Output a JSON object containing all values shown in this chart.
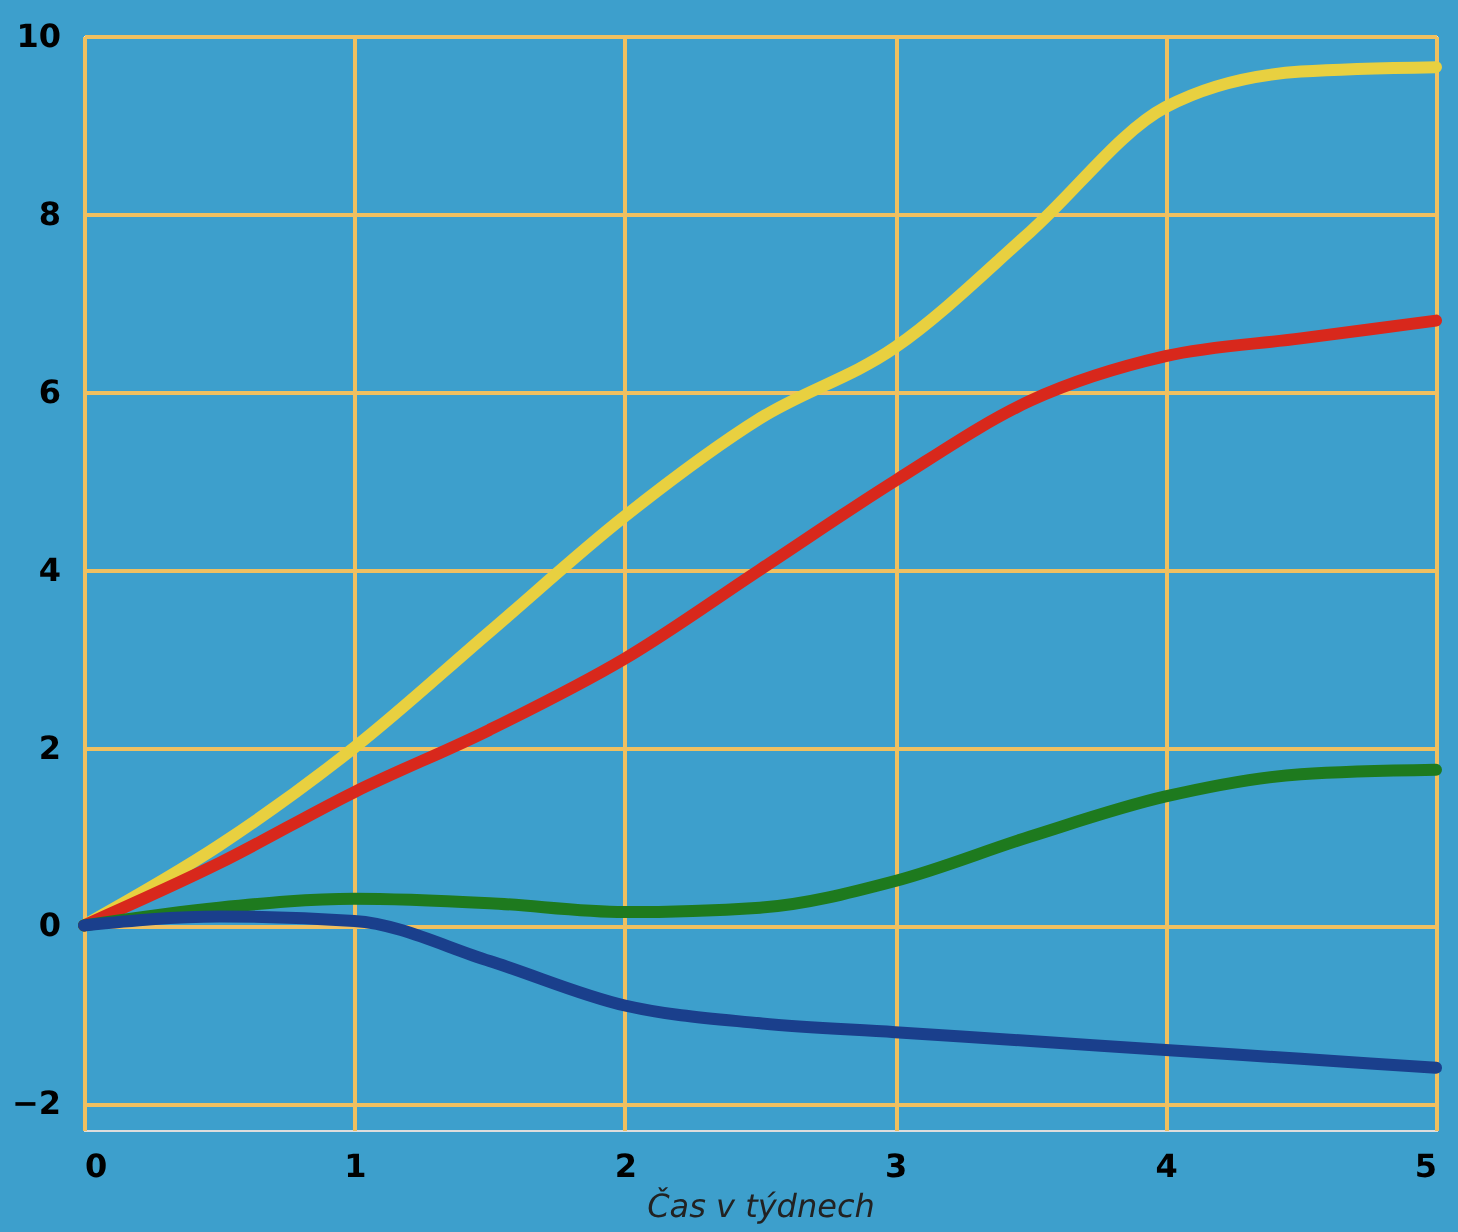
{
  "chart_data": {
    "type": "line",
    "xlabel": "Čas v týdnech",
    "x": [
      0,
      0.5,
      1,
      1.5,
      2,
      2.5,
      3,
      3.5,
      4,
      4.5,
      5
    ],
    "series": [
      {
        "color": "#e8d040",
        "values": [
          0,
          0.9,
          2.0,
          3.3,
          4.6,
          5.7,
          6.5,
          7.8,
          9.2,
          9.6,
          9.65
        ]
      },
      {
        "color": "#d8281c",
        "values": [
          0,
          0.7,
          1.5,
          2.2,
          3.0,
          4.0,
          5.0,
          5.9,
          6.4,
          6.6,
          6.8
        ]
      },
      {
        "color": "#1e7a1e",
        "values": [
          0,
          0.2,
          0.3,
          0.25,
          0.15,
          0.2,
          0.5,
          1.0,
          1.45,
          1.7,
          1.75
        ]
      },
      {
        "color": "#1a3f8c",
        "values": [
          0,
          0.1,
          0.05,
          -0.4,
          -0.9,
          -1.1,
          -1.2,
          -1.3,
          -1.4,
          -1.5,
          -1.6
        ]
      }
    ],
    "xlim": [
      0,
      5
    ],
    "ylim": [
      -2.3,
      10
    ],
    "xticks": [
      0,
      1,
      2,
      3,
      4,
      5
    ],
    "yticks": [
      -2,
      0,
      2,
      4,
      6,
      8,
      10
    ],
    "grid": true,
    "marker": "none",
    "line_style": "solid",
    "legend": false
  }
}
